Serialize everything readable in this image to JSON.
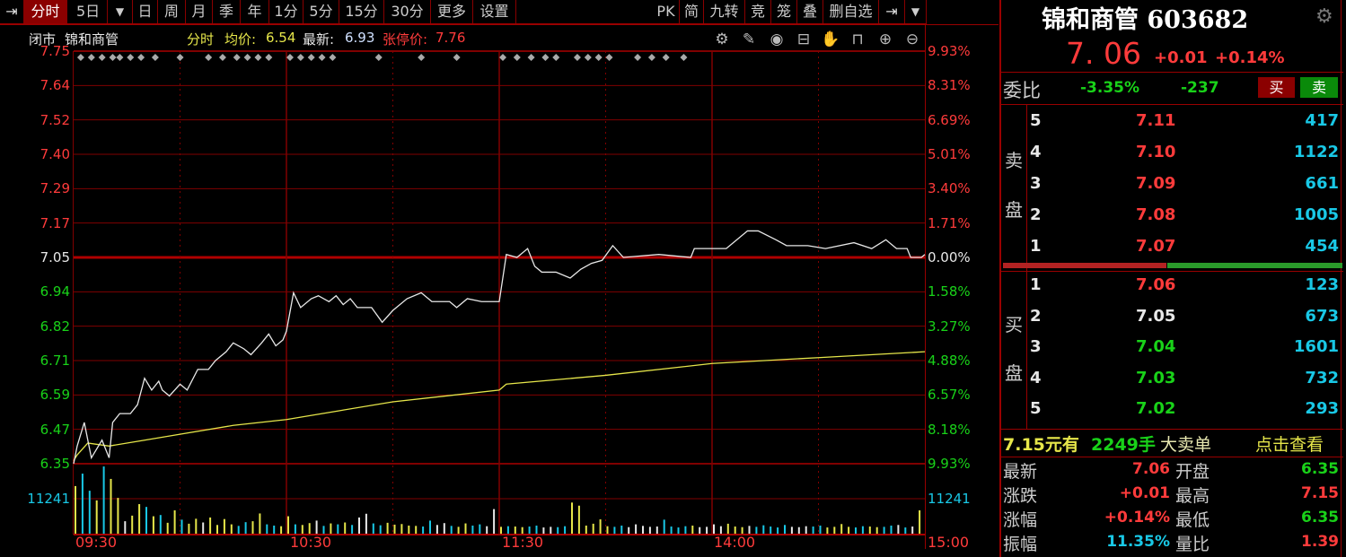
{
  "toolbar": {
    "left_items": [
      {
        "label": "分时",
        "active": true
      },
      {
        "label": "5日"
      },
      {
        "label": "日"
      },
      {
        "label": "周"
      },
      {
        "label": "月"
      },
      {
        "label": "季"
      },
      {
        "label": "年"
      },
      {
        "label": "1分"
      },
      {
        "label": "5分"
      },
      {
        "label": "15分"
      },
      {
        "label": "30分"
      },
      {
        "label": "更多"
      },
      {
        "label": "设置"
      }
    ],
    "right_items": [
      {
        "label": "PK"
      },
      {
        "label": "简"
      },
      {
        "label": "九转"
      },
      {
        "label": "竞"
      },
      {
        "label": "笼"
      },
      {
        "label": "叠"
      },
      {
        "label": "删自选"
      }
    ]
  },
  "info": {
    "status": "闭市",
    "name": "锦和商管",
    "mode": "分时",
    "avg_label": "均价:",
    "avg": "6.54",
    "latest_label": "最新:",
    "latest": "6.93",
    "limit_label": "张停价:",
    "limit": "7.76"
  },
  "chart_icons": [
    "settings-icon",
    "brush-icon",
    "eye-icon",
    "toolbox-icon",
    "hand-icon",
    "unlock-icon",
    "zoom-in-icon",
    "zoom-out-icon"
  ],
  "chart_data": {
    "type": "line",
    "prev_close": 7.05,
    "ylim": [
      6.35,
      7.75
    ],
    "price_ticks": [
      "7.75",
      "7.64",
      "7.52",
      "7.40",
      "7.29",
      "7.17",
      "7.05",
      "6.94",
      "6.82",
      "6.71",
      "6.59",
      "6.47",
      "6.35"
    ],
    "pct_ticks": [
      "9.93%",
      "8.31%",
      "6.69%",
      "5.01%",
      "3.40%",
      "1.71%",
      "0.00%",
      "1.58%",
      "3.27%",
      "4.88%",
      "6.57%",
      "8.18%",
      "9.93%"
    ],
    "volume_tick": "11241",
    "time_ticks": [
      "09:30",
      "10:30",
      "11:30",
      "14:00",
      "15:00"
    ],
    "colors": {
      "price": "#e8e8e8",
      "avg": "#e6e64a",
      "up": "#ff3b3b",
      "down": "#19d219",
      "grid": "#800000"
    },
    "price": [
      [
        "09:30",
        6.35
      ],
      [
        "09:31",
        6.41
      ],
      [
        "09:33",
        6.49
      ],
      [
        "09:35",
        6.37
      ],
      [
        "09:38",
        6.43
      ],
      [
        "09:40",
        6.37
      ],
      [
        "09:41",
        6.49
      ],
      [
        "09:43",
        6.52
      ],
      [
        "09:46",
        6.52
      ],
      [
        "09:48",
        6.55
      ],
      [
        "09:50",
        6.64
      ],
      [
        "09:52",
        6.6
      ],
      [
        "09:54",
        6.63
      ],
      [
        "09:55",
        6.6
      ],
      [
        "09:57",
        6.58
      ],
      [
        "10:00",
        6.62
      ],
      [
        "10:02",
        6.6
      ],
      [
        "10:05",
        6.67
      ],
      [
        "10:08",
        6.67
      ],
      [
        "10:10",
        6.7
      ],
      [
        "10:13",
        6.73
      ],
      [
        "10:15",
        6.76
      ],
      [
        "10:18",
        6.74
      ],
      [
        "10:20",
        6.72
      ],
      [
        "10:23",
        6.76
      ],
      [
        "10:25",
        6.79
      ],
      [
        "10:27",
        6.75
      ],
      [
        "10:29",
        6.77
      ],
      [
        "10:30",
        6.8
      ],
      [
        "10:32",
        6.93
      ],
      [
        "10:34",
        6.88
      ],
      [
        "10:37",
        6.91
      ],
      [
        "10:39",
        6.92
      ],
      [
        "10:42",
        6.9
      ],
      [
        "10:44",
        6.92
      ],
      [
        "10:46",
        6.89
      ],
      [
        "10:48",
        6.91
      ],
      [
        "10:50",
        6.88
      ],
      [
        "10:54",
        6.88
      ],
      [
        "10:57",
        6.83
      ],
      [
        "11:00",
        6.87
      ],
      [
        "11:04",
        6.91
      ],
      [
        "11:08",
        6.93
      ],
      [
        "11:11",
        6.9
      ],
      [
        "11:16",
        6.9
      ],
      [
        "11:18",
        6.88
      ],
      [
        "11:21",
        6.91
      ],
      [
        "11:25",
        6.9
      ],
      [
        "11:30",
        6.9
      ],
      [
        "13:02",
        7.06
      ],
      [
        "13:05",
        7.05
      ],
      [
        "13:08",
        7.08
      ],
      [
        "13:10",
        7.02
      ],
      [
        "13:12",
        7.0
      ],
      [
        "13:16",
        7.0
      ],
      [
        "13:20",
        6.98
      ],
      [
        "13:23",
        7.01
      ],
      [
        "13:26",
        7.03
      ],
      [
        "13:29",
        7.04
      ],
      [
        "13:32",
        7.09
      ],
      [
        "13:35",
        7.05
      ],
      [
        "13:45",
        7.06
      ],
      [
        "13:54",
        7.05
      ],
      [
        "13:55",
        7.08
      ],
      [
        "14:04",
        7.08
      ],
      [
        "14:10",
        7.14
      ],
      [
        "14:13",
        7.14
      ],
      [
        "14:18",
        7.11
      ],
      [
        "14:21",
        7.09
      ],
      [
        "14:27",
        7.09
      ],
      [
        "14:32",
        7.08
      ],
      [
        "14:40",
        7.1
      ],
      [
        "14:45",
        7.08
      ],
      [
        "14:49",
        7.11
      ],
      [
        "14:52",
        7.08
      ],
      [
        "14:55",
        7.08
      ],
      [
        "14:56",
        7.05
      ],
      [
        "14:59",
        7.05
      ],
      [
        "15:00",
        7.06
      ]
    ],
    "avg": [
      [
        "09:30",
        6.36
      ],
      [
        "09:31",
        6.38
      ],
      [
        "09:34",
        6.42
      ],
      [
        "09:40",
        6.41
      ],
      [
        "09:50",
        6.43
      ],
      [
        "10:00",
        6.45
      ],
      [
        "10:15",
        6.48
      ],
      [
        "10:30",
        6.5
      ],
      [
        "10:45",
        6.53
      ],
      [
        "11:00",
        6.56
      ],
      [
        "11:15",
        6.58
      ],
      [
        "11:30",
        6.6
      ],
      [
        "13:02",
        6.62
      ],
      [
        "13:30",
        6.65
      ],
      [
        "14:00",
        6.69
      ],
      [
        "14:30",
        6.71
      ],
      [
        "15:00",
        6.73
      ]
    ],
    "volume_interval_min": 2,
    "volume": [
      15300,
      19300,
      13800,
      10700,
      21600,
      17600,
      11500,
      4000,
      5800,
      9500,
      8600,
      5600,
      6000,
      3500,
      7500,
      4500,
      3200,
      4800,
      3600,
      5200,
      2800,
      4700,
      3000,
      2500,
      3700,
      4000,
      6500,
      3000,
      2600,
      2400,
      5600,
      3000,
      2800,
      3400,
      4200,
      2500,
      3300,
      3000,
      3600,
      2800,
      5200,
      6400,
      3300,
      2700,
      3500,
      2900,
      3100,
      2600,
      2500,
      2300,
      4200,
      2800,
      3400,
      2500,
      2200,
      3300,
      2600,
      3000,
      2400,
      7900,
      2200,
      2400,
      2300,
      2100,
      2300,
      2600,
      2000,
      2200,
      2100,
      2400,
      10000,
      9000,
      2600,
      3200,
      4600,
      2400,
      2200,
      2600,
      2100,
      3000,
      2500,
      2200,
      2300,
      4500,
      2300,
      2000,
      2400,
      2600,
      2100,
      2200,
      3000,
      2400,
      3200,
      2300,
      2100,
      2500,
      2200,
      2700,
      2300,
      2000,
      2800,
      2200,
      2100,
      2400,
      2300,
      2600,
      2000,
      2200,
      3100,
      2200,
      2000,
      2400,
      2300,
      2100,
      2200,
      2600,
      2800,
      2000,
      2300,
      7500
    ]
  },
  "quote": {
    "title": "锦和商管 603682",
    "price": "7. 06",
    "change": "+0.01",
    "change_pct": "+0.14%",
    "weibi_label": "委比",
    "weibi_pct": "-3.35%",
    "weicha": "-237",
    "buy_btn": "买",
    "sell_btn": "卖",
    "sell_label_1": "卖",
    "sell_label_2": "盘",
    "buy_label_1": "买",
    "buy_label_2": "盘",
    "asks": [
      {
        "lvl": "5",
        "price": "7.11",
        "vol": "417"
      },
      {
        "lvl": "4",
        "price": "7.10",
        "vol": "1122"
      },
      {
        "lvl": "3",
        "price": "7.09",
        "vol": "661"
      },
      {
        "lvl": "2",
        "price": "7.08",
        "vol": "1005"
      },
      {
        "lvl": "1",
        "price": "7.07",
        "vol": "454"
      }
    ],
    "bids": [
      {
        "lvl": "1",
        "price": "7.06",
        "vol": "123",
        "color": "red"
      },
      {
        "lvl": "2",
        "price": "7.05",
        "vol": "673",
        "color": "wht"
      },
      {
        "lvl": "3",
        "price": "7.04",
        "vol": "1601",
        "color": "grn"
      },
      {
        "lvl": "4",
        "price": "7.03",
        "vol": "732",
        "color": "grn"
      },
      {
        "lvl": "5",
        "price": "7.02",
        "vol": "293",
        "color": "grn"
      }
    ],
    "big_order": {
      "price": "7.15元有",
      "qty": "2249手",
      "type": "大卖单",
      "link": "点击查看"
    },
    "stats": [
      {
        "l1": "最新",
        "v1": "7.06",
        "c1": "red",
        "l2": "开盘",
        "v2": "6.35",
        "c2": "grn"
      },
      {
        "l1": "涨跌",
        "v1": "+0.01",
        "c1": "red",
        "l2": "最高",
        "v2": "7.15",
        "c2": "red"
      },
      {
        "l1": "涨幅",
        "v1": "+0.14%",
        "c1": "red",
        "l2": "最低",
        "v2": "6.35",
        "c2": "grn"
      },
      {
        "l1": "振幅",
        "v1": "11.35%",
        "c1": "cyan",
        "l2": "量比",
        "v2": "1.39",
        "c2": "red"
      }
    ]
  }
}
